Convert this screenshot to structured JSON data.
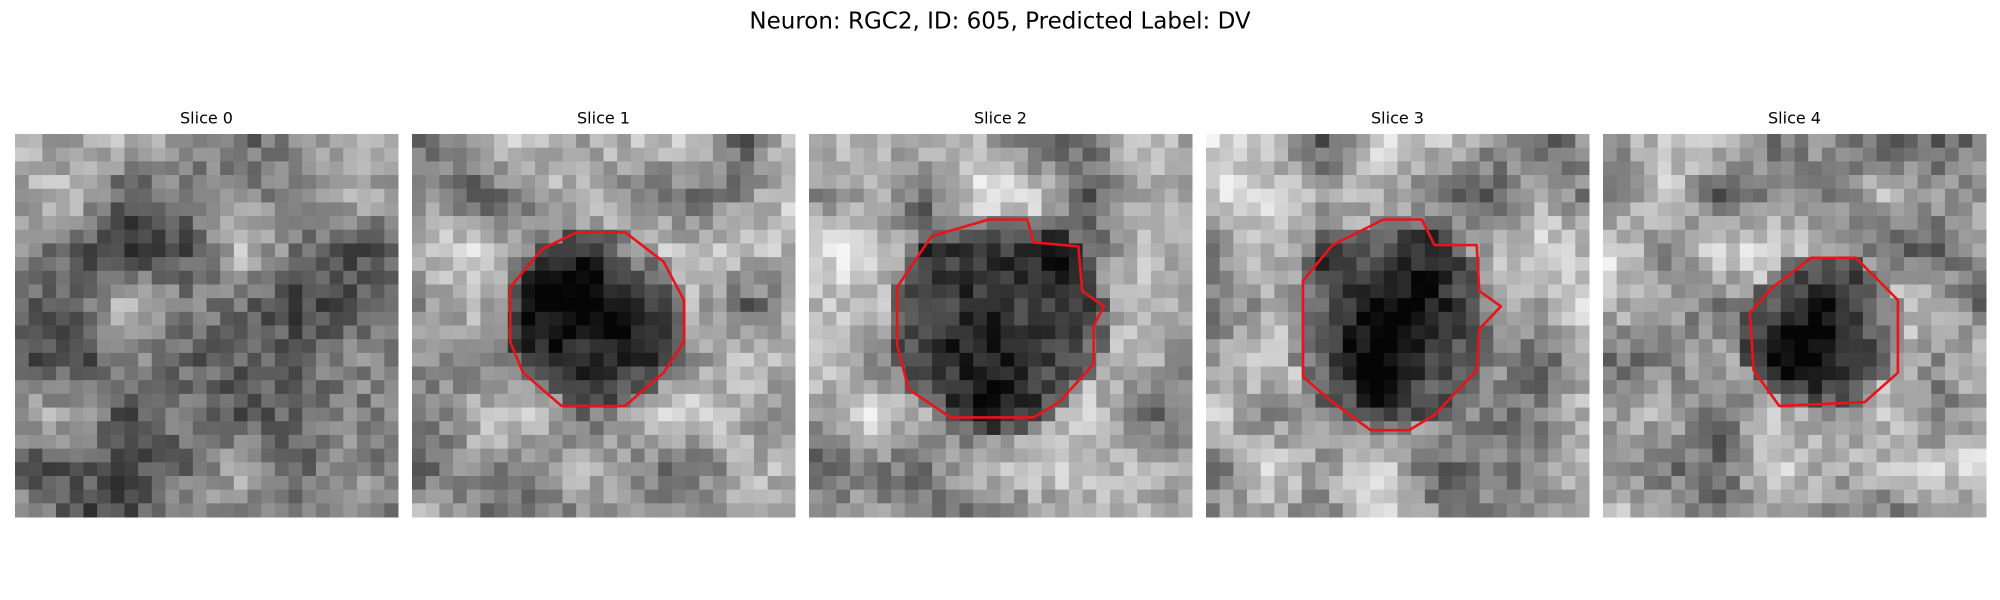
{
  "header": {
    "title": "Neuron: RGC2, ID: 605, Predicted Label: DV"
  },
  "panels": [
    {
      "title": "Slice 0"
    },
    {
      "title": "Slice 1"
    },
    {
      "title": "Slice 2"
    },
    {
      "title": "Slice 3"
    },
    {
      "title": "Slice 4"
    }
  ]
}
